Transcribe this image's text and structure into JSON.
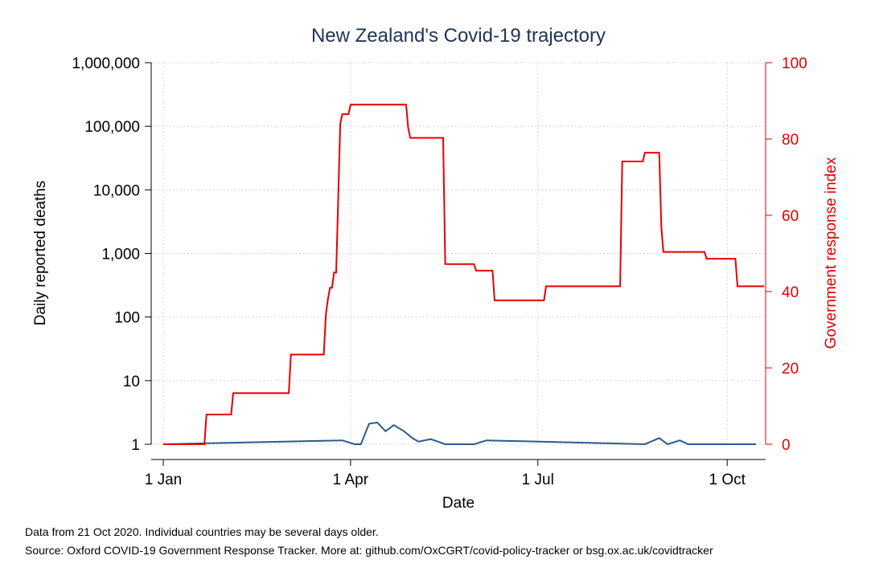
{
  "chart_data": {
    "type": "line",
    "title": "New Zealand's Covid-19 trajectory",
    "xlabel": "Date",
    "ylabel_left": "Daily reported deaths",
    "ylabel_right": "Government response index",
    "x_ticks": [
      "1 Jan",
      "1 Apr",
      "1 Jul",
      "1 Oct"
    ],
    "y_left_scale": "log",
    "y_left_ticks": [
      "1",
      "10",
      "100",
      "1,000",
      "10,000",
      "100,000",
      "1,000,000"
    ],
    "y_left_range": [
      1,
      1000000
    ],
    "y_right_ticks": [
      "0",
      "20",
      "40",
      "60",
      "80",
      "100"
    ],
    "y_right_range": [
      0,
      100
    ],
    "grid": true,
    "colors": {
      "deaths": "#2c5a8a",
      "response": "#e60000",
      "title": "#1f3452",
      "right_axis": "#e00000"
    },
    "series": [
      {
        "axis": "left",
        "x": [
          "2020-01-01",
          "2020-03-28",
          "2020-04-03",
          "2020-04-06",
          "2020-04-10",
          "2020-04-14",
          "2020-04-18",
          "2020-04-22",
          "2020-04-27",
          "2020-05-01",
          "2020-05-04",
          "2020-05-10",
          "2020-05-17",
          "2020-05-31",
          "2020-06-06",
          "2020-08-22",
          "2020-08-29",
          "2020-09-02",
          "2020-09-08",
          "2020-09-12",
          "2020-10-15"
        ],
        "y": [
          1,
          1.15,
          1,
          1,
          2.1,
          2.2,
          1.6,
          2.0,
          1.6,
          1.25,
          1.1,
          1.2,
          1,
          1,
          1.15,
          1,
          1.25,
          1,
          1.15,
          1,
          1
        ]
      },
      {
        "axis": "right",
        "x": [
          "2020-01-01",
          "2020-01-21",
          "2020-01-22",
          "2020-02-03",
          "2020-02-04",
          "2020-03-02",
          "2020-03-03",
          "2020-03-19",
          "2020-03-20",
          "2020-03-21",
          "2020-03-22",
          "2020-03-23",
          "2020-03-24",
          "2020-03-25",
          "2020-03-26",
          "2020-03-27",
          "2020-03-28",
          "2020-03-31",
          "2020-04-01",
          "2020-04-28",
          "2020-04-29",
          "2020-04-30",
          "2020-05-16",
          "2020-05-17",
          "2020-05-31",
          "2020-06-01",
          "2020-06-09",
          "2020-06-10",
          "2020-07-04",
          "2020-07-05",
          "2020-08-10",
          "2020-08-11",
          "2020-08-21",
          "2020-08-22",
          "2020-08-29",
          "2020-08-30",
          "2020-08-31",
          "2020-09-20",
          "2020-09-21",
          "2020-10-05",
          "2020-10-06",
          "2020-10-19"
        ],
        "y": [
          0,
          0,
          7.8,
          7.8,
          13.4,
          13.4,
          23.5,
          23.5,
          34,
          38,
          41,
          41,
          45,
          45,
          64,
          84,
          86.5,
          86.5,
          89,
          89,
          83,
          80.3,
          80.3,
          47.2,
          47.2,
          45.5,
          45.5,
          37.7,
          37.7,
          41.4,
          41.4,
          74.1,
          74.1,
          76.4,
          76.4,
          57,
          50.4,
          50.4,
          48.6,
          48.6,
          41.4,
          41.4
        ]
      }
    ]
  },
  "footnotes": {
    "line1": "Data from 21 Oct 2020. Individual countries may be several days older.",
    "line2": "Source: Oxford COVID-19 Government Response Tracker. More at: github.com/OxCGRT/covid-policy-tracker or bsg.ox.ac.uk/covidtracker"
  }
}
